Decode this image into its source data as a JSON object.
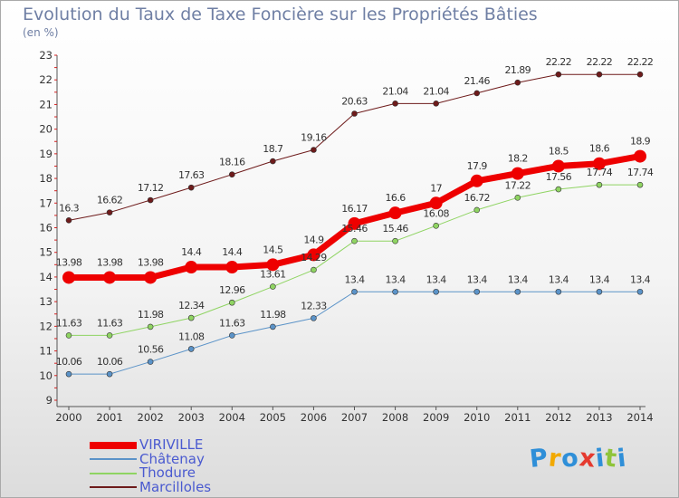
{
  "header": {
    "title": "Evolution du Taux de Taxe Foncière sur les Propriétés Bâties",
    "subtitle": "(en %)"
  },
  "chart_data": {
    "type": "line",
    "title": "Evolution du Taux de Taxe Foncière sur les Propriétés Bâties",
    "subtitle": "(en %)",
    "x": [
      "2000",
      "2001",
      "2002",
      "2003",
      "2004",
      "2005",
      "2006",
      "2007",
      "2008",
      "2009",
      "2010",
      "2011",
      "2012",
      "2013",
      "2014"
    ],
    "ylim": [
      9,
      23
    ],
    "yticks": [
      9,
      10,
      11,
      12,
      13,
      14,
      15,
      16,
      17,
      18,
      19,
      20,
      21,
      22,
      23
    ],
    "grid": false,
    "legend_position": "bottom-left",
    "series": [
      {
        "name": "Marcilloles",
        "color": "#6e1b1b",
        "width": 1,
        "marker": 3,
        "values": [
          16.3,
          16.62,
          17.12,
          17.63,
          18.16,
          18.7,
          19.16,
          20.63,
          21.04,
          21.04,
          21.46,
          21.89,
          22.22,
          22.22,
          22.22
        ],
        "labels": [
          "16.3",
          "16.62",
          "17.12",
          "17.63",
          "18.16",
          "18.7",
          "19.16",
          "20.63",
          "21.04",
          "21.04",
          "21.46",
          "21.89",
          "22.22",
          "22.22",
          "22.22"
        ]
      },
      {
        "name": "Thodure",
        "color": "#8fd462",
        "width": 1,
        "marker": 3,
        "values": [
          11.63,
          11.63,
          11.98,
          12.34,
          12.96,
          13.61,
          14.29,
          15.46,
          15.46,
          16.08,
          16.72,
          17.22,
          17.56,
          17.74,
          17.74
        ],
        "labels": [
          "11.63",
          "11.63",
          "11.98",
          "12.34",
          "12.96",
          "13.61",
          "14.29",
          "15.46",
          "15.46",
          "16.08",
          "16.72",
          "17.22",
          "17.56",
          "17.74",
          "17.74"
        ]
      },
      {
        "name": "Châtenay",
        "color": "#5b93c8",
        "width": 1,
        "marker": 3,
        "values": [
          10.06,
          10.06,
          10.56,
          11.08,
          11.63,
          11.98,
          12.33,
          13.4,
          13.4,
          13.4,
          13.4,
          13.4,
          13.4,
          13.4,
          13.4
        ],
        "labels": [
          "10.06",
          "10.06",
          "10.56",
          "11.08",
          "11.63",
          "11.98",
          "12.33",
          "13.4",
          "13.4",
          "13.4",
          "13.4",
          "13.4",
          "13.4",
          "13.4",
          "13.4"
        ]
      },
      {
        "name": "VIRIVILLE",
        "color": "#ee0000",
        "width": 7,
        "marker": 7,
        "values": [
          13.98,
          13.98,
          13.98,
          14.4,
          14.4,
          14.5,
          14.9,
          16.17,
          16.6,
          17,
          17.9,
          18.2,
          18.5,
          18.6,
          18.9
        ],
        "labels": [
          "13.98",
          "13.98",
          "13.98",
          "14.4",
          "14.4",
          "14.5",
          "14.9",
          "16.17",
          "16.6",
          "17",
          "17.9",
          "18.2",
          "18.5",
          "18.6",
          "18.9"
        ]
      }
    ]
  },
  "legend": {
    "items": [
      {
        "name": "VIRIVILLE",
        "color": "#ee0000",
        "thick": true
      },
      {
        "name": "Châtenay",
        "color": "#5b93c8",
        "thick": false
      },
      {
        "name": "Thodure",
        "color": "#8fd462",
        "thick": false
      },
      {
        "name": "Marcilloles",
        "color": "#6e1b1b",
        "thick": false
      }
    ]
  },
  "logo": {
    "text": "Proxiti",
    "colors": [
      "#2f8fd8",
      "#f2a900",
      "#2f8fd8",
      "#e53a2f",
      "#2f8fd8",
      "#8fc43a",
      "#2f8fd8"
    ]
  }
}
